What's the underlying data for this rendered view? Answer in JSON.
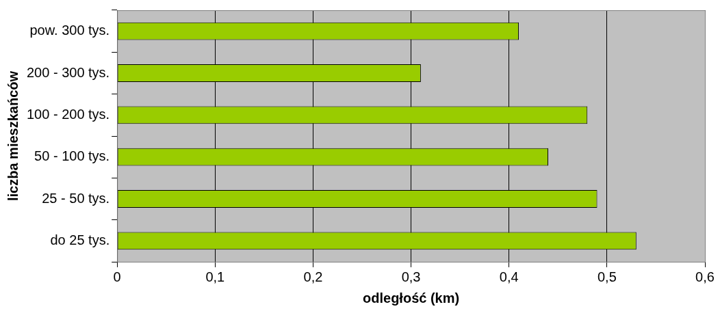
{
  "chart_data": {
    "type": "bar",
    "orientation": "horizontal",
    "xlabel": "odległość (km)",
    "ylabel": "liczba mieszkańców",
    "categories": [
      "pow. 300 tys.",
      "200 - 300 tys.",
      "100 - 200 tys.",
      "50 - 100 tys.",
      "25 - 50 tys.",
      "do 25 tys."
    ],
    "values": [
      0.41,
      0.31,
      0.48,
      0.44,
      0.49,
      0.53
    ],
    "color": "#99cc00",
    "xlim": [
      0,
      0.6
    ],
    "xticks": [
      0,
      {
        "value": 0.1,
        "label": "0,1"
      },
      {
        "value": 0.2,
        "label": "0,2"
      },
      {
        "value": 0.3,
        "label": "0,3"
      },
      {
        "value": 0.4,
        "label": "0,4"
      },
      {
        "value": 0.5,
        "label": "0,5"
      },
      {
        "value": 0.6,
        "label": "0,6"
      }
    ],
    "grid": "x",
    "legend": false
  }
}
